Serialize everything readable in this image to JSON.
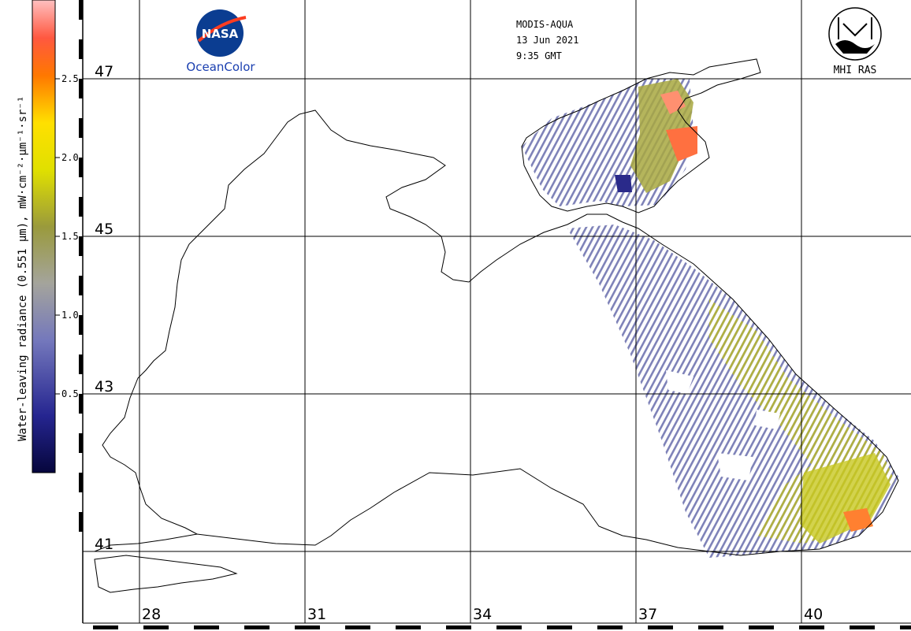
{
  "colorbar": {
    "title": "Water-leaving radiance (0.551 µm), mW·cm⁻²·µm⁻¹·sr⁻¹",
    "ticks": [
      {
        "value": 0.5,
        "label": "0.5"
      },
      {
        "value": 1.0,
        "label": "1.0"
      },
      {
        "value": 1.5,
        "label": "1.5"
      },
      {
        "value": 2.0,
        "label": "2.0"
      },
      {
        "value": 2.5,
        "label": "2.5"
      }
    ],
    "range": [
      0,
      3.0
    ],
    "colors": [
      "#0a0a50",
      "#2a2a9a",
      "#7c80c0",
      "#a0a098",
      "#9a9a40",
      "#d8d800",
      "#ff8800",
      "#ff6040",
      "#ffc8c8"
    ]
  },
  "header": {
    "sensor": "MODIS-AQUA",
    "date": "13 Jun 2021",
    "time": "9:35 GMT"
  },
  "logos": {
    "nasa_text": "NASA",
    "oceancolor": "OceanColor",
    "mhi_label": "MHI RAS"
  },
  "grid": {
    "latitudes": [
      {
        "value": 47,
        "label": "47"
      },
      {
        "value": 45,
        "label": "45"
      },
      {
        "value": 43,
        "label": "43"
      },
      {
        "value": 41,
        "label": "41"
      }
    ],
    "longitudes": [
      {
        "value": 28,
        "label": "28"
      },
      {
        "value": 31,
        "label": "31"
      },
      {
        "value": 34,
        "label": "34"
      },
      {
        "value": 37,
        "label": "37"
      },
      {
        "value": 40,
        "label": "40"
      }
    ]
  }
}
